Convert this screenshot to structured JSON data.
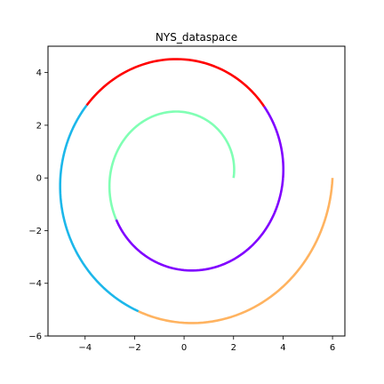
{
  "chart_data": {
    "type": "line",
    "title": "NYS_dataspace",
    "xlabel": "",
    "ylabel": "",
    "xlim": [
      -5.5,
      6.5
    ],
    "ylim": [
      -6,
      5
    ],
    "xticks": [
      -4,
      -2,
      0,
      2,
      4,
      6
    ],
    "yticks": [
      -6,
      -4,
      -2,
      0,
      2,
      4
    ],
    "xtick_labels": [
      "−4",
      "−2",
      "0",
      "2",
      "4",
      "6"
    ],
    "ytick_labels": [
      "−6",
      "−4",
      "−2",
      "0",
      "2",
      "4"
    ],
    "grid": false,
    "spiral": {
      "center": [
        0,
        0
      ],
      "start_radius": 2,
      "end_radius": 6,
      "turns": 2,
      "direction": "counterclockwise"
    },
    "series": [
      {
        "color": "#80ffb4",
        "theta_start_deg": 0,
        "theta_end_deg": 210
      },
      {
        "color": "#8000ff",
        "theta_start_deg": 210,
        "theta_end_deg": 360
      },
      {
        "color": "#8000ff",
        "theta_start_deg": 360,
        "theta_end_deg": 400
      },
      {
        "color": "#ff0000",
        "theta_start_deg": 400,
        "theta_end_deg": 505
      },
      {
        "color": "#1cb7ea",
        "theta_start_deg": 505,
        "theta_end_deg": 610
      },
      {
        "color": "#ffb360",
        "theta_start_deg": 610,
        "theta_end_deg": 720
      }
    ]
  }
}
